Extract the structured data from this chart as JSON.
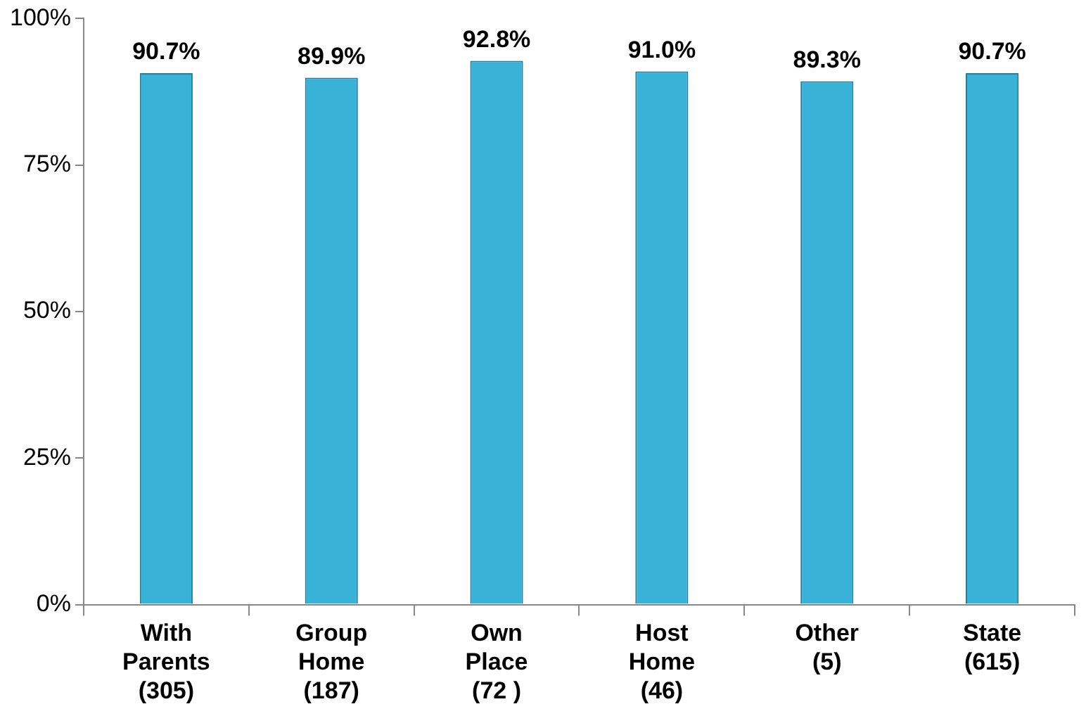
{
  "chart_data": {
    "type": "bar",
    "categories": [
      "With\nParents\n(305)",
      "Group\nHome\n(187)",
      "Own\nPlace\n(72 )",
      "Host\nHome\n(46)",
      "Other\n(5)",
      "State\n(615)"
    ],
    "values": [
      90.7,
      89.9,
      92.8,
      91.0,
      89.3,
      90.7
    ],
    "value_labels": [
      "90.7%",
      "89.9%",
      "92.8%",
      "91.0%",
      "89.3%",
      "90.7%"
    ],
    "color": "#38b2d6",
    "ylim": [
      0,
      100
    ],
    "yticks": [
      {
        "value": 0,
        "label": "0%"
      },
      {
        "value": 25,
        "label": "25%"
      },
      {
        "value": 50,
        "label": "50%"
      },
      {
        "value": 75,
        "label": "75%"
      },
      {
        "value": 100,
        "label": "100%"
      }
    ],
    "grid": false,
    "legend": false
  }
}
